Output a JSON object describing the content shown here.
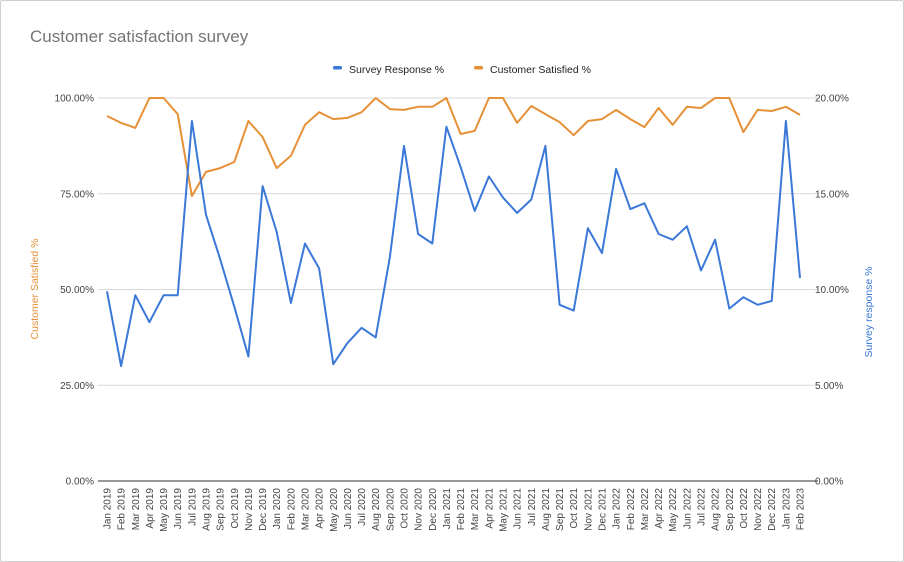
{
  "chart_data": {
    "type": "line",
    "title": "Customer satisfaction survey",
    "categories": [
      "Jan 2019",
      "Feb 2019",
      "Mar 2019",
      "Apr 2019",
      "May 2019",
      "Jun 2019",
      "Jul 2019",
      "Aug 2019",
      "Sep 2019",
      "Oct 2019",
      "Nov 2019",
      "Dec 2019",
      "Jan 2020",
      "Feb 2020",
      "Mar 2020",
      "Apr 2020",
      "May 2020",
      "Jun 2020",
      "Jul 2020",
      "Aug 2020",
      "Sep 2020",
      "Oct 2020",
      "Nov 2020",
      "Dec 2020",
      "Jan 2021",
      "Feb 2021",
      "Mar 2021",
      "Apr 2021",
      "May 2021",
      "Jun 2021",
      "Jul 2021",
      "Aug 2021",
      "Sep 2021",
      "Oct 2021",
      "Nov 2021",
      "Dec 2021",
      "Jan 2022",
      "Feb 2022",
      "Mar 2022",
      "Apr 2022",
      "May 2022",
      "Jun 2022",
      "Jul 2022",
      "Aug 2022",
      "Sep 2022",
      "Oct 2022",
      "Nov 2022",
      "Dec 2022",
      "Jan 2023",
      "Feb 2023"
    ],
    "series": [
      {
        "name": "Survey Response %",
        "axis": "right",
        "color": "#3b78d8",
        "values": [
          9.9,
          6.0,
          9.7,
          8.3,
          9.7,
          9.7,
          18.8,
          13.9,
          11.6,
          9.1,
          6.5,
          15.4,
          13.0,
          9.3,
          12.4,
          11.1,
          6.1,
          7.2,
          8.0,
          7.5,
          11.7,
          17.5,
          12.9,
          12.4,
          18.5,
          16.4,
          14.1,
          15.9,
          14.8,
          14.0,
          14.7,
          17.5,
          9.2,
          8.9,
          13.2,
          11.9,
          16.3,
          14.2,
          14.5,
          12.9,
          12.6,
          13.3,
          11.0,
          12.6,
          9.0,
          9.6,
          9.2,
          9.4,
          18.8,
          10.6
        ]
      },
      {
        "name": "Customer Satisfied %",
        "axis": "left",
        "color": "#e69138",
        "values": [
          95.3,
          93.5,
          92.2,
          100,
          100,
          95.8,
          74.4,
          80.7,
          81.7,
          83.3,
          94.0,
          89.8,
          81.7,
          84.9,
          93.0,
          96.3,
          94.5,
          94.8,
          96.3,
          100,
          97.1,
          96.9,
          97.7,
          97.7,
          100,
          90.6,
          91.4,
          100,
          100,
          93.5,
          97.9,
          95.8,
          93.7,
          90.3,
          94.0,
          94.5,
          96.9,
          94.5,
          92.4,
          97.4,
          93.0,
          97.7,
          97.4,
          100,
          100,
          91.1,
          96.9,
          96.6,
          97.7,
          95.6
        ]
      }
    ],
    "left_axis": {
      "label": "Customer Satisfied %",
      "ylim": [
        0,
        100
      ],
      "ticks": [
        "0.00%",
        "25.00%",
        "50.00%",
        "75.00%",
        "100.00%"
      ]
    },
    "right_axis": {
      "label": "Survey response %",
      "ylim": [
        0,
        20
      ],
      "ticks": [
        "0.00%",
        "5.00%",
        "10.00%",
        "15.00%",
        "20.00%"
      ]
    },
    "legend_position": "top",
    "grid": true
  }
}
